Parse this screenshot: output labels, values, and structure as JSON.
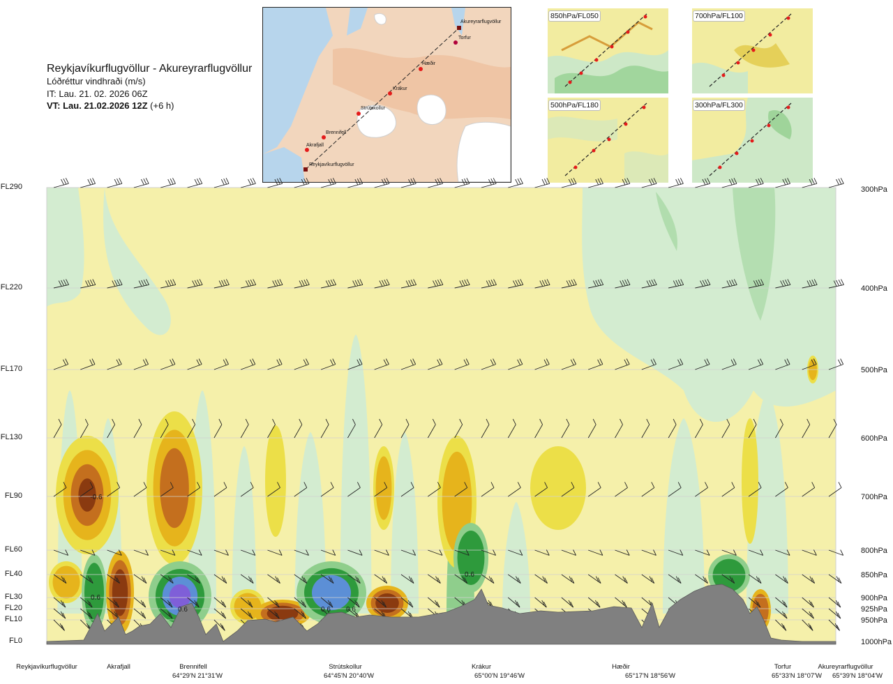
{
  "header": {
    "route": "Reykjavíkurflugvöllur - Akureyrarflugvöllur",
    "parameter": "Lóðréttur vindhraði (m/s)",
    "issue_time": "IT: Lau. 21. 02. 2026 06Z",
    "valid_time": "VT: Lau. 21.02.2026 12Z",
    "lead": "(+6 h)"
  },
  "map": {
    "waypoints": [
      "Akureyrarflugvöllur",
      "Torfur",
      "Hæðir",
      "Krákur",
      "Strútskollur",
      "Brennifell",
      "Akrafjall",
      "Reykjavíkurflugvöllur"
    ]
  },
  "panels": [
    {
      "label": "850hPa/FL050"
    },
    {
      "label": "700hPa/FL100"
    },
    {
      "label": "500hPa/FL180"
    },
    {
      "label": "300hPa/FL300"
    }
  ],
  "colors": {
    "up_light": "#d3ecd0",
    "up_mid": "#8fce8c",
    "up_strong": "#2e9a3c",
    "up_very": "#5c8fd6",
    "up_extreme": "#7f5fd8",
    "down_weak": "#f5f0aa",
    "down_light": "#ecdf48",
    "down_mid": "#e6b41c",
    "down_strong": "#c46f1e",
    "down_very": "#8a3a10",
    "terrain": "#808080"
  },
  "chart_data": {
    "type": "heatmap",
    "title": "Reykjavíkurflugvöllur - Akureyrarflugvöllur",
    "variable": "Lóðréttur vindhraði (m/s)",
    "flight_levels": [
      "FL290",
      "FL220",
      "FL170",
      "FL130",
      "FL90",
      "FL60",
      "FL40",
      "FL30",
      "FL20",
      "FL10",
      "FL0"
    ],
    "pressure_levels": [
      "300hPa",
      "400hPa",
      "500hPa",
      "600hPa",
      "700hPa",
      "800hPa",
      "850hPa",
      "900hPa",
      "925hPa",
      "950hPa",
      "1000hPa"
    ],
    "x_places": [
      {
        "name": "Reykjavíkurflugvöllur",
        "coord": ""
      },
      {
        "name": "Akrafjall",
        "coord": ""
      },
      {
        "name": "Brennifell",
        "coord": "64°29'N 21°31'W"
      },
      {
        "name": "Strútskollur",
        "coord": "64°45'N 20°40'W"
      },
      {
        "name": "Krákur",
        "coord": "65°00'N 19°46'W"
      },
      {
        "name": "Hæðir",
        "coord": "65°17'N 18°56'W"
      },
      {
        "name": "Torfur",
        "coord": "65°33'N 18°07'W"
      },
      {
        "name": "Akureyrarflugvöllur",
        "coord": "65°39'N 18°04'W"
      }
    ],
    "contour_labels": [
      "-0.6",
      "0.6",
      "0.6",
      "0.6",
      "0.6",
      "0.6"
    ],
    "legend": "none"
  }
}
